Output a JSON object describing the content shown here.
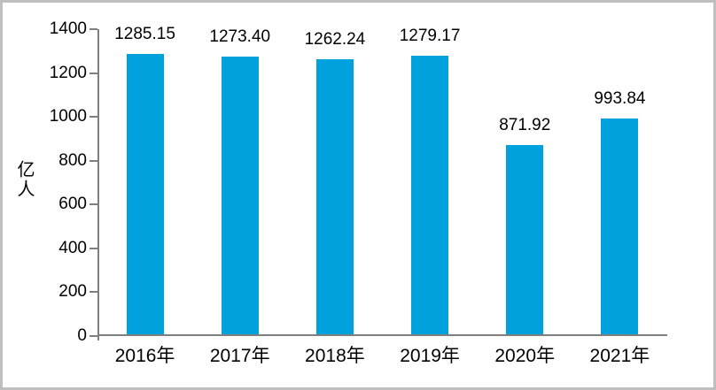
{
  "chart_data": {
    "type": "bar",
    "title": "",
    "xlabel": "",
    "ylabel": "亿人",
    "categories": [
      "2016年",
      "2017年",
      "2018年",
      "2019年",
      "2020年",
      "2021年"
    ],
    "values": [
      1285.15,
      1273.4,
      1262.24,
      1279.17,
      871.92,
      993.84
    ],
    "value_labels": [
      "1285.15",
      "1273.40",
      "1262.24",
      "1279.17",
      "871.92",
      "993.84"
    ],
    "ylim": [
      0,
      1400
    ],
    "yticks": [
      0,
      200,
      400,
      600,
      800,
      1000,
      1200,
      1400
    ],
    "grid": false,
    "legend": "none",
    "bar_color": "#00A1DC",
    "axis_color": "#7F7F7F",
    "frame_border_color": "#BFBFBF",
    "text_color": "#000000"
  }
}
